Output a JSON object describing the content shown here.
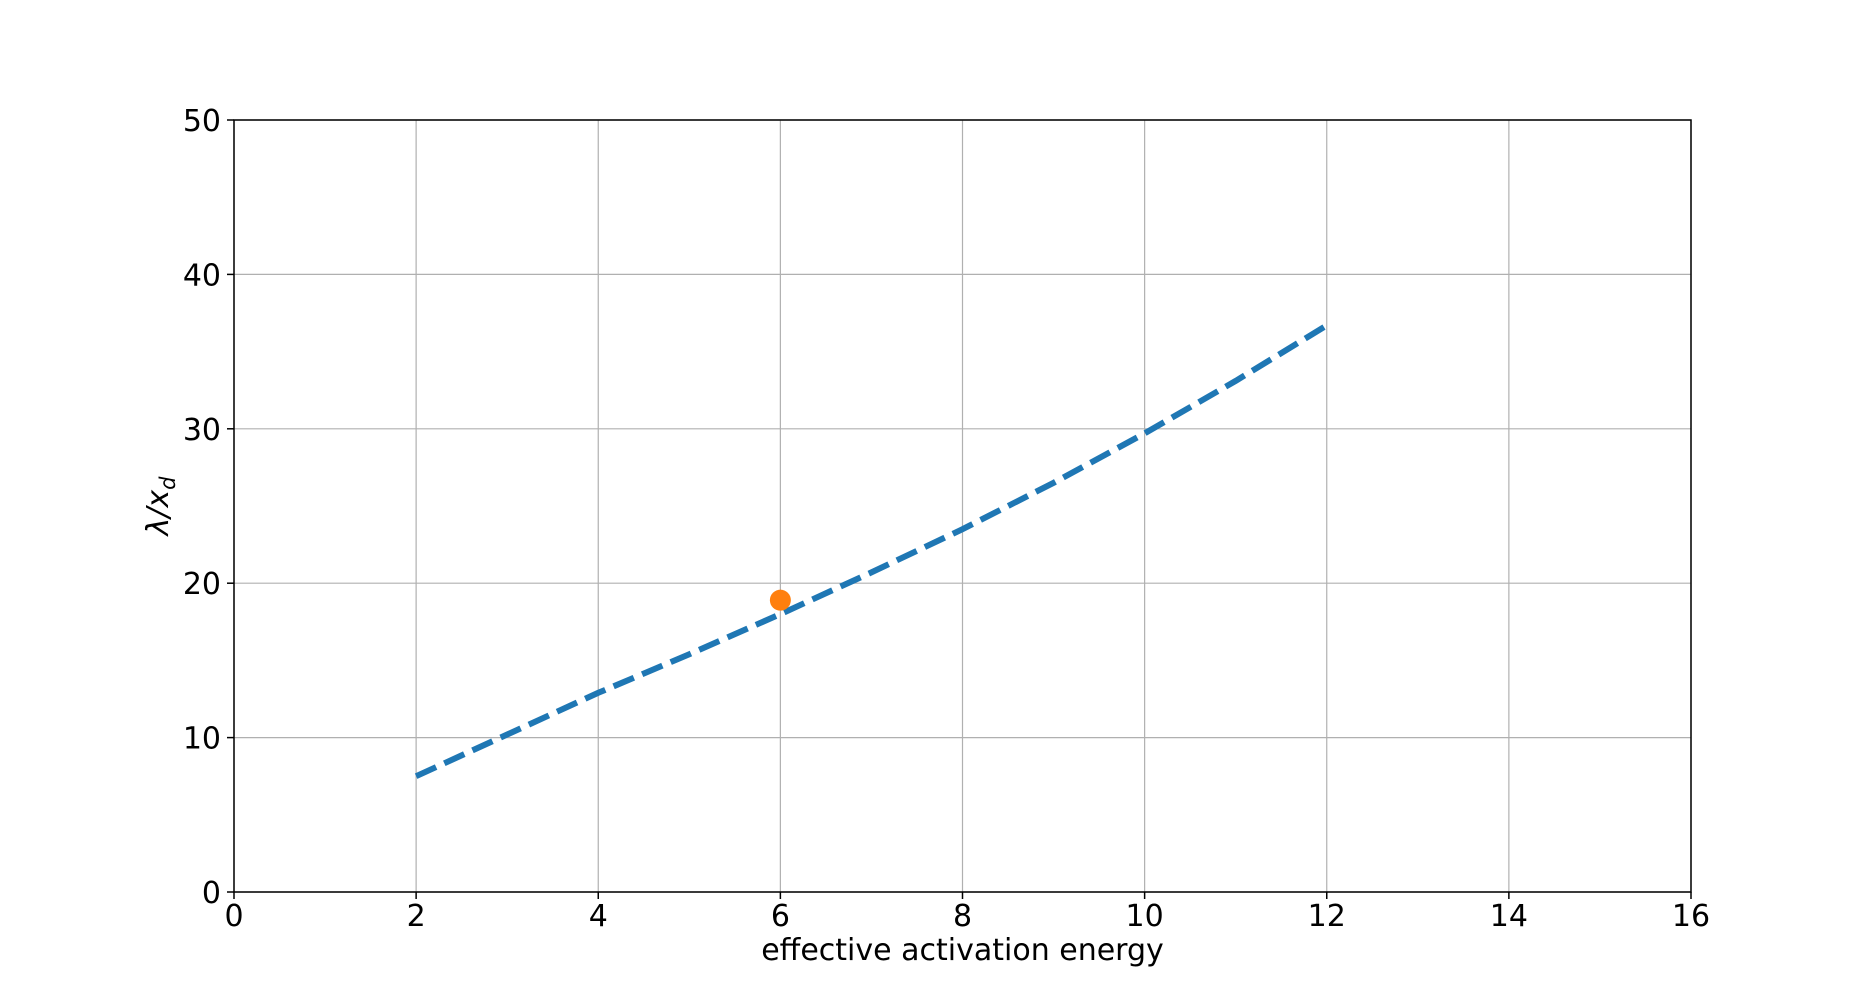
{
  "chart_data": {
    "type": "line",
    "title": "",
    "xlabel": "effective activation energy",
    "ylabel": {
      "main": "λ/x",
      "subscript": "d"
    },
    "xlim": [
      0,
      16
    ],
    "ylim": [
      0,
      50
    ],
    "xticks": [
      0,
      2,
      4,
      6,
      8,
      10,
      12,
      14,
      16
    ],
    "yticks": [
      0,
      10,
      20,
      30,
      40,
      50
    ],
    "grid": true,
    "legend": "none",
    "series": [
      {
        "kind": "line",
        "style": "dashed",
        "color": "#1f77b4",
        "x": [
          2,
          3,
          4,
          5,
          6,
          7,
          8,
          9,
          10,
          11,
          12
        ],
        "y": [
          7.5,
          10.2,
          12.9,
          15.4,
          18.0,
          20.7,
          23.5,
          26.5,
          29.7,
          33.1,
          36.7
        ]
      },
      {
        "kind": "scatter",
        "color": "#ff7f0e",
        "x": [
          6
        ],
        "y": [
          18.9
        ]
      }
    ]
  }
}
